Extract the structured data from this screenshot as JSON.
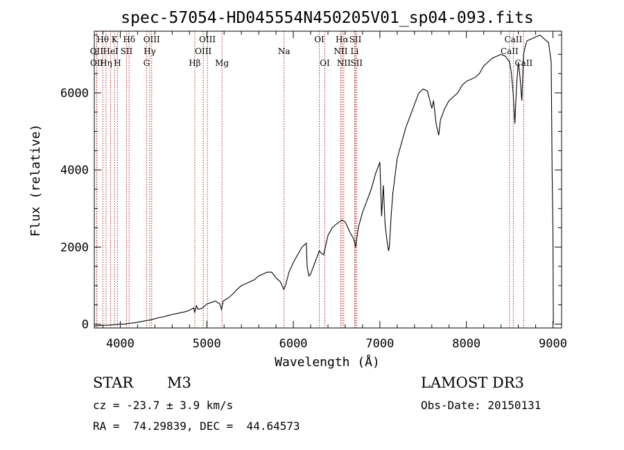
{
  "chart_data": {
    "type": "line",
    "title": "spec-57054-HD045554N450205V01_sp04-093.fits",
    "xlabel": "Wavelength (Å)",
    "ylabel": "Flux (relative)",
    "xlim": [
      3700,
      9100
    ],
    "ylim": [
      -100,
      7600
    ],
    "xticks": [
      4000,
      5000,
      6000,
      7000,
      8000,
      9000
    ],
    "yticks": [
      0,
      2000,
      4000,
      6000
    ],
    "grid": false,
    "line_color": "#000000",
    "marker_color": "#b22222",
    "series": [
      {
        "name": "flux",
        "x": [
          3700,
          3750,
          3800,
          3850,
          3900,
          3950,
          4000,
          4050,
          4100,
          4150,
          4200,
          4250,
          4300,
          4350,
          4400,
          4450,
          4500,
          4550,
          4600,
          4650,
          4700,
          4750,
          4800,
          4850,
          4860,
          4880,
          4900,
          4950,
          5000,
          5050,
          5100,
          5150,
          5170,
          5190,
          5250,
          5300,
          5350,
          5400,
          5450,
          5500,
          5550,
          5600,
          5650,
          5700,
          5750,
          5800,
          5850,
          5890,
          5910,
          5950,
          6000,
          6050,
          6100,
          6150,
          6160,
          6180,
          6200,
          6250,
          6300,
          6320,
          6350,
          6400,
          6450,
          6500,
          6560,
          6600,
          6650,
          6700,
          6720,
          6750,
          6800,
          6850,
          6900,
          6950,
          7000,
          7020,
          7040,
          7060,
          7080,
          7100,
          7110,
          7130,
          7150,
          7200,
          7250,
          7300,
          7350,
          7400,
          7450,
          7500,
          7550,
          7600,
          7620,
          7650,
          7680,
          7700,
          7750,
          7800,
          7850,
          7900,
          7950,
          8000,
          8050,
          8100,
          8150,
          8200,
          8250,
          8300,
          8350,
          8400,
          8450,
          8500,
          8520,
          8540,
          8560,
          8580,
          8600,
          8620,
          8640,
          8660,
          8680,
          8700,
          8750,
          8800,
          8850,
          8900,
          8950,
          8980,
          8990,
          9000,
          9005
        ],
        "y": [
          -50,
          -40,
          -30,
          -30,
          -20,
          -10,
          0,
          0,
          20,
          30,
          50,
          70,
          90,
          110,
          140,
          170,
          190,
          220,
          250,
          270,
          300,
          320,
          360,
          420,
          300,
          480,
          380,
          420,
          520,
          560,
          600,
          520,
          380,
          600,
          680,
          780,
          900,
          1000,
          1050,
          1100,
          1150,
          1250,
          1300,
          1350,
          1350,
          1200,
          1100,
          900,
          1000,
          1350,
          1600,
          1800,
          2000,
          2100,
          1500,
          1250,
          1300,
          1600,
          1900,
          1850,
          1800,
          2300,
          2500,
          2600,
          2700,
          2650,
          2400,
          2200,
          2000,
          2500,
          2900,
          3200,
          3500,
          3900,
          4200,
          2800,
          3600,
          2600,
          2200,
          1900,
          2000,
          2800,
          3400,
          4300,
          4700,
          5100,
          5400,
          5700,
          6000,
          6100,
          6050,
          5600,
          5800,
          5200,
          4900,
          5300,
          5600,
          5800,
          5900,
          6000,
          6200,
          6300,
          6350,
          6400,
          6500,
          6700,
          6800,
          6900,
          6950,
          7000,
          6950,
          6800,
          6500,
          6000,
          5200,
          6200,
          6800,
          6400,
          5800,
          7000,
          7200,
          7350,
          7400,
          7450,
          7500,
          7400,
          7300,
          6800,
          4000,
          2500,
          0
        ]
      }
    ],
    "spectral_lines": [
      {
        "name": "Hθ",
        "x": 3798,
        "row": 1
      },
      {
        "name": "OII",
        "x": 3727,
        "row": 2
      },
      {
        "name": "OII",
        "x": 3729,
        "row": 3
      },
      {
        "name": "Hη",
        "x": 3835,
        "row": 3
      },
      {
        "name": "HeI",
        "x": 3889,
        "row": 2
      },
      {
        "name": "K",
        "x": 3934,
        "row": 1
      },
      {
        "name": "H",
        "x": 3968,
        "row": 3
      },
      {
        "name": "SII",
        "x": 4072,
        "row": 2
      },
      {
        "name": "Hδ",
        "x": 4102,
        "row": 1
      },
      {
        "name": "Hγ",
        "x": 4341,
        "row": 2
      },
      {
        "name": "OIII",
        "x": 4363,
        "row": 1
      },
      {
        "name": "G",
        "x": 4304,
        "row": 3
      },
      {
        "name": "Hβ",
        "x": 4861,
        "row": 3
      },
      {
        "name": "OIII",
        "x": 4959,
        "row": 2
      },
      {
        "name": "OIII",
        "x": 5007,
        "row": 1
      },
      {
        "name": "Mg",
        "x": 5175,
        "row": 3
      },
      {
        "name": "Na",
        "x": 5893,
        "row": 2
      },
      {
        "name": "OI",
        "x": 6300,
        "row": 1
      },
      {
        "name": "OI",
        "x": 6364,
        "row": 3
      },
      {
        "name": "NII",
        "x": 6548,
        "row": 2
      },
      {
        "name": "Hα",
        "x": 6563,
        "row": 1
      },
      {
        "name": "NII",
        "x": 6583,
        "row": 3
      },
      {
        "name": "Li",
        "x": 6708,
        "row": 2
      },
      {
        "name": "SII",
        "x": 6717,
        "row": 1
      },
      {
        "name": "SII",
        "x": 6731,
        "row": 3
      },
      {
        "name": "CaII",
        "x": 8498,
        "row": 2
      },
      {
        "name": "CaII",
        "x": 8542,
        "row": 1
      },
      {
        "name": "CaII",
        "x": 8662,
        "row": 3
      }
    ]
  },
  "info": {
    "object_class": "STAR",
    "subclass": "M3",
    "cz": "cz = -23.7 ± 3.9 km/s",
    "coords": "RA =  74.29839, DEC =  44.64573",
    "survey": "LAMOST DR3",
    "obs_date": "Obs-Date: 20150131"
  }
}
